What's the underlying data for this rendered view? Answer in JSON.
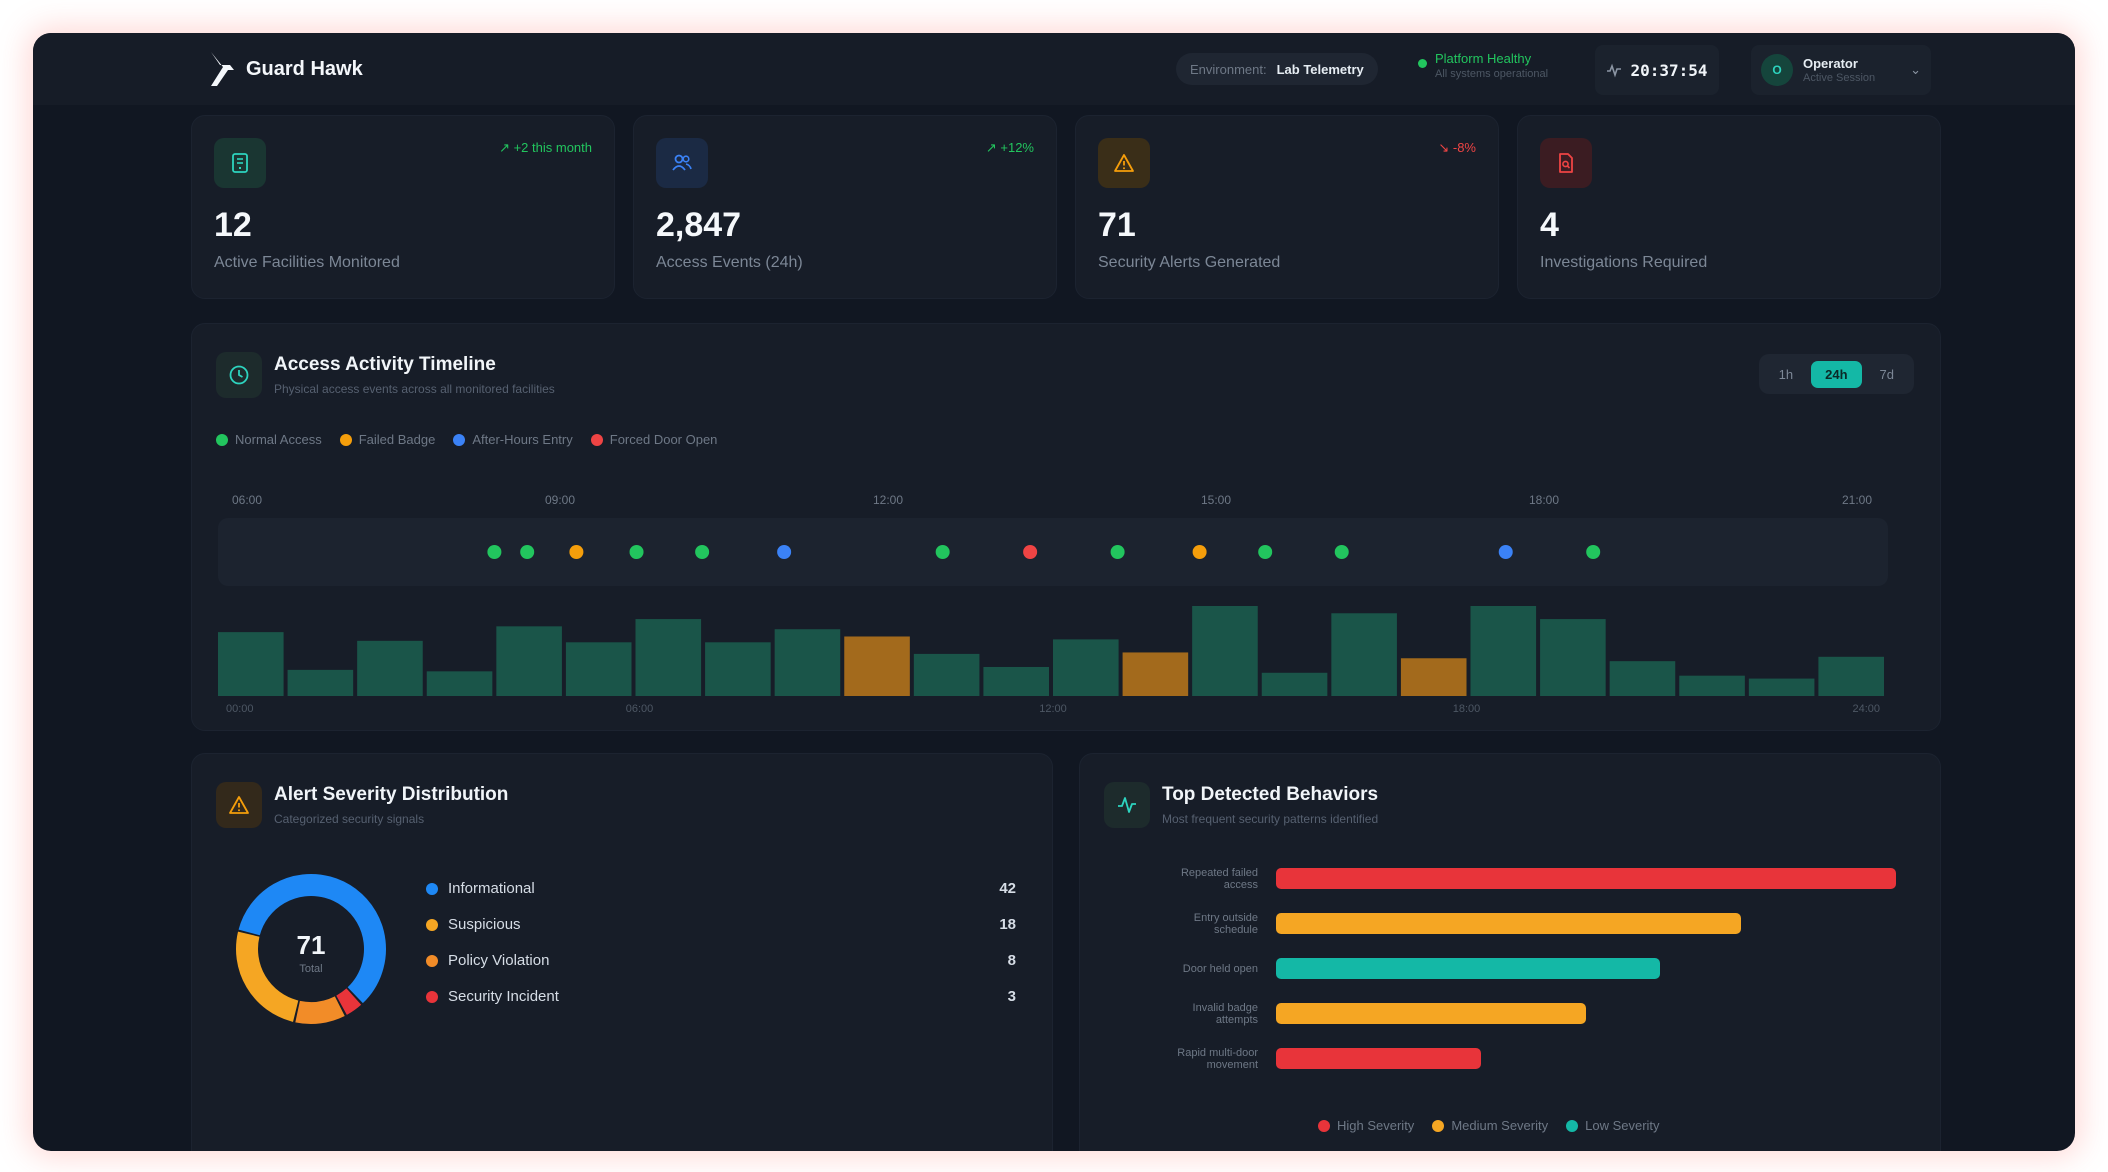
{
  "app": {
    "name": "Guard Hawk"
  },
  "header": {
    "environment_label": "Environment:",
    "environment_value": "Lab Telemetry",
    "status_title": "Platform Healthy",
    "status_sub": "All systems operational",
    "clock": "20:37:54",
    "user_initial": "O",
    "user_name": "Operator",
    "user_sub": "Active Session"
  },
  "stats": [
    {
      "value": "12",
      "label": "Active Facilities Monitored",
      "trend": "+2 this month",
      "trend_dir": "up",
      "icon": "building-icon",
      "color": "#2dd4bf"
    },
    {
      "value": "2,847",
      "label": "Access Events (24h)",
      "trend": "+12%",
      "trend_dir": "up",
      "icon": "users-icon",
      "color": "#3b82f6"
    },
    {
      "value": "71",
      "label": "Security Alerts Generated",
      "trend": "-8%",
      "trend_dir": "down",
      "icon": "warning-icon",
      "color": "#f59e0b"
    },
    {
      "value": "4",
      "label": "Investigations Required",
      "trend": "",
      "trend_dir": "",
      "icon": "file-search-icon",
      "color": "#ef4444"
    }
  ],
  "timeline": {
    "title": "Access Activity Timeline",
    "subtitle": "Physical access events across all monitored facilities",
    "ranges": [
      "1h",
      "24h",
      "7d"
    ],
    "active_range": "24h",
    "legend": [
      {
        "label": "Normal Access",
        "color": "#22c55e"
      },
      {
        "label": "Failed Badge",
        "color": "#f59e0b"
      },
      {
        "label": "After-Hours Entry",
        "color": "#3b82f6"
      },
      {
        "label": "Forced Door Open",
        "color": "#ef4444"
      }
    ],
    "axis_labels": [
      "06:00",
      "09:00",
      "12:00",
      "15:00",
      "18:00",
      "21:00"
    ],
    "axis_start_hour": 6,
    "axis_end_hour": 21,
    "events": [
      {
        "t": 8.4,
        "kind": "normal"
      },
      {
        "t": 8.7,
        "kind": "normal"
      },
      {
        "t": 9.15,
        "kind": "failed"
      },
      {
        "t": 9.7,
        "kind": "normal"
      },
      {
        "t": 10.3,
        "kind": "normal"
      },
      {
        "t": 11.05,
        "kind": "after"
      },
      {
        "t": 12.5,
        "kind": "normal"
      },
      {
        "t": 13.3,
        "kind": "forced"
      },
      {
        "t": 14.1,
        "kind": "normal"
      },
      {
        "t": 14.85,
        "kind": "failed"
      },
      {
        "t": 15.45,
        "kind": "normal"
      },
      {
        "t": 16.15,
        "kind": "normal"
      },
      {
        "t": 17.65,
        "kind": "after"
      },
      {
        "t": 18.45,
        "kind": "normal"
      }
    ],
    "event_colors": {
      "normal": "#22c55e",
      "failed": "#f59e0b",
      "after": "#3b82f6",
      "forced": "#ef4444"
    },
    "histogram": {
      "x_labels": [
        "00:00",
        "06:00",
        "12:00",
        "18:00",
        "24:00"
      ],
      "values": [
        44,
        18,
        38,
        17,
        48,
        37,
        53,
        37,
        46,
        41,
        29,
        20,
        39,
        30,
        62,
        16,
        57,
        26,
        62,
        53,
        24,
        14,
        12,
        27
      ],
      "highlight": [
        false,
        false,
        false,
        false,
        false,
        false,
        false,
        false,
        false,
        true,
        false,
        false,
        false,
        true,
        false,
        false,
        false,
        true,
        false,
        false,
        false,
        false,
        false,
        false
      ],
      "bar_color": "#1a5549",
      "highlight_color": "#a36a1c"
    }
  },
  "severity": {
    "title": "Alert Severity Distribution",
    "subtitle": "Categorized security signals",
    "total": "71",
    "total_label": "Total",
    "items": [
      {
        "label": "Informational",
        "count": 42,
        "color": "#1e88f5"
      },
      {
        "label": "Suspicious",
        "count": 18,
        "color": "#f5a623"
      },
      {
        "label": "Policy Violation",
        "count": 8,
        "color": "#f28c28"
      },
      {
        "label": "Security Incident",
        "count": 3,
        "color": "#e8343a"
      }
    ]
  },
  "behaviors": {
    "title": "Top Detected Behaviors",
    "subtitle": "Most frequent security patterns identified",
    "max": 100,
    "items": [
      {
        "label": [
          "Repeated failed",
          "access"
        ],
        "value": 100,
        "severity": "high"
      },
      {
        "label": [
          "Entry outside",
          "schedule"
        ],
        "value": 75,
        "severity": "medium"
      },
      {
        "label": [
          "Door held open"
        ],
        "value": 62,
        "severity": "low"
      },
      {
        "label": [
          "Invalid badge",
          "attempts"
        ],
        "value": 50,
        "severity": "medium"
      },
      {
        "label": [
          "Rapid multi-door",
          "movement"
        ],
        "value": 33,
        "severity": "high"
      }
    ],
    "severity_colors": {
      "high": "#e8343a",
      "medium": "#f5a623",
      "low": "#14b8a6"
    },
    "legend": [
      {
        "label": "High Severity",
        "color": "#e8343a"
      },
      {
        "label": "Medium Severity",
        "color": "#f5a623"
      },
      {
        "label": "Low Severity",
        "color": "#14b8a6"
      }
    ]
  }
}
